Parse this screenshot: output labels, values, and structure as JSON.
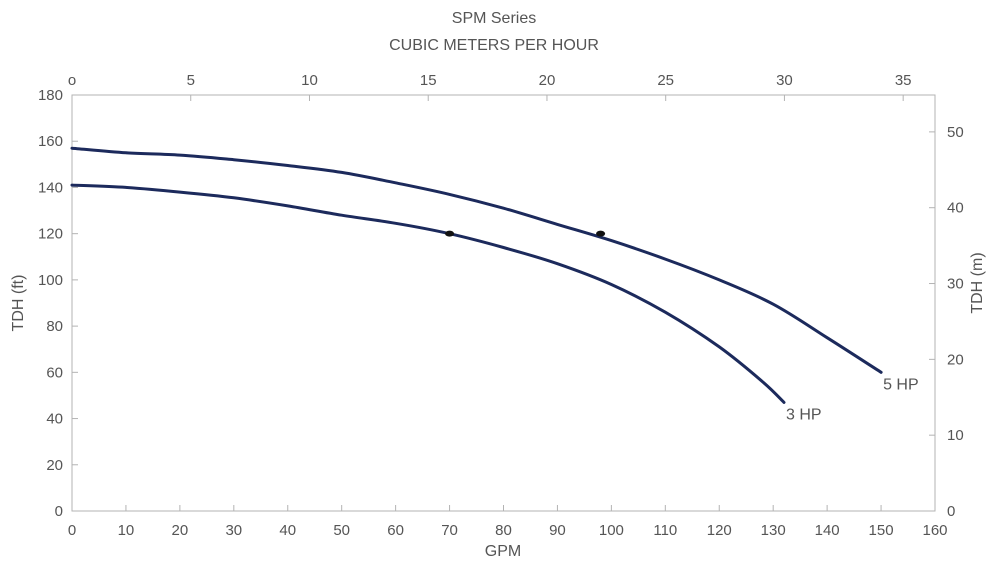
{
  "chart_data": {
    "type": "line",
    "title": "SPM Series",
    "top_axis_label": "CUBIC METERS PER HOUR",
    "xlabel": "GPM",
    "ylabel_left": "TDH (ft)",
    "ylabel_right": "TDH (m)",
    "xlim": [
      0,
      160
    ],
    "ylim_left": [
      0,
      180
    ],
    "ylim_right": [
      0,
      54.864
    ],
    "x_ticks": [
      0,
      10,
      20,
      30,
      40,
      50,
      60,
      70,
      80,
      90,
      100,
      110,
      120,
      130,
      140,
      150,
      160
    ],
    "y_left_ticks": [
      0,
      20,
      40,
      60,
      80,
      100,
      120,
      140,
      160,
      180
    ],
    "y_right_ticks": [
      0,
      10,
      20,
      30,
      40,
      50
    ],
    "top_ticks": [
      0,
      5,
      10,
      15,
      20,
      25,
      30,
      35
    ],
    "top_tick_labels": [
      "o",
      "5",
      "10",
      "15",
      "20",
      "25",
      "30",
      "35"
    ],
    "grid": false,
    "series": [
      {
        "name": "3 HP",
        "color": "#1c2a5c",
        "x": [
          0,
          10,
          20,
          30,
          40,
          50,
          60,
          70,
          80,
          90,
          100,
          110,
          120,
          128,
          132
        ],
        "y": [
          141,
          140,
          138,
          135.5,
          132,
          128,
          124.5,
          120,
          114,
          107,
          98,
          86,
          71,
          56,
          47
        ],
        "marker_point": [
          70,
          120
        ]
      },
      {
        "name": "5 HP",
        "color": "#1c2a5c",
        "x": [
          0,
          10,
          20,
          30,
          40,
          50,
          60,
          70,
          80,
          90,
          100,
          110,
          120,
          130,
          140,
          150
        ],
        "y": [
          157,
          155,
          154,
          152,
          149.5,
          146.5,
          142,
          137,
          131,
          124,
          117,
          109,
          100,
          89.5,
          75,
          60
        ],
        "marker_point": [
          98,
          120
        ]
      }
    ]
  }
}
